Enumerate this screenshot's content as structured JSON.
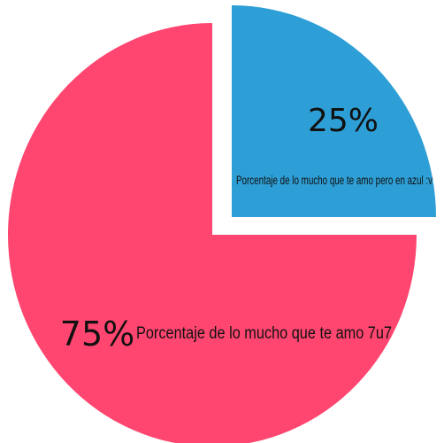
{
  "chart_data": {
    "type": "pie",
    "title": "",
    "legend": "none",
    "slices": [
      {
        "value": 25,
        "percent_label": "25%",
        "text": "Porcentaje de lo mucho que te amo pero en azul :v",
        "color": "#2e9fd6",
        "exploded": true
      },
      {
        "value": 75,
        "percent_label": "75%",
        "text": "Porcentaje de lo mucho que te amo 7u7",
        "color": "#ff4670",
        "exploded": false
      }
    ]
  }
}
